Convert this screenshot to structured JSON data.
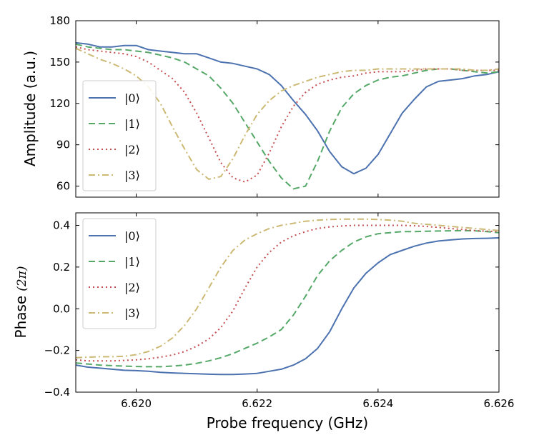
{
  "chart_data": [
    {
      "type": "line",
      "panel": "top",
      "ylabel": "Amplitude (a.u.)",
      "xlim": [
        6.619,
        6.626
      ],
      "ylim": [
        52,
        180
      ],
      "yticks": [
        60,
        90,
        120,
        150,
        180
      ],
      "ytick_labels": [
        "60",
        "90",
        "120",
        "150",
        "180"
      ],
      "xticks": [
        6.62,
        6.622,
        6.624,
        6.626
      ],
      "legend_position": "center-left",
      "series": [
        {
          "name": "|0⟩",
          "x": [
            6.619,
            6.6192,
            6.6194,
            6.6196,
            6.6198,
            6.62,
            6.6202,
            6.6204,
            6.6206,
            6.6208,
            6.621,
            6.6212,
            6.6214,
            6.6216,
            6.6218,
            6.622,
            6.6222,
            6.6224,
            6.6226,
            6.6228,
            6.623,
            6.6232,
            6.6234,
            6.6236,
            6.6238,
            6.624,
            6.6242,
            6.6244,
            6.6246,
            6.6248,
            6.625,
            6.6252,
            6.6254,
            6.6256,
            6.6258,
            6.626
          ],
          "values": [
            164,
            163,
            161,
            161,
            162,
            162,
            159,
            158,
            157,
            156,
            156,
            153,
            150,
            149,
            147,
            145,
            141,
            133,
            122,
            112,
            100,
            85,
            74,
            69,
            73,
            83,
            98,
            113,
            123,
            132,
            136,
            137,
            138,
            140,
            141,
            143
          ]
        },
        {
          "name": "|1⟩",
          "x": [
            6.619,
            6.6192,
            6.6194,
            6.6196,
            6.6198,
            6.62,
            6.6202,
            6.6204,
            6.6206,
            6.6208,
            6.621,
            6.6212,
            6.6214,
            6.6216,
            6.6218,
            6.622,
            6.6222,
            6.6224,
            6.6226,
            6.6228,
            6.623,
            6.6232,
            6.6234,
            6.6236,
            6.6238,
            6.624,
            6.6242,
            6.6244,
            6.6246,
            6.6248,
            6.625,
            6.6252,
            6.6254,
            6.6256,
            6.6258,
            6.626
          ],
          "values": [
            163,
            161,
            160,
            159,
            159,
            158,
            157,
            155,
            153,
            150,
            145,
            140,
            131,
            120,
            106,
            92,
            78,
            66,
            58,
            60,
            78,
            100,
            117,
            127,
            133,
            137,
            139,
            140,
            142,
            144,
            145,
            145,
            144,
            143,
            142,
            143
          ]
        },
        {
          "name": "|2⟩",
          "x": [
            6.619,
            6.6192,
            6.6194,
            6.6196,
            6.6198,
            6.62,
            6.6202,
            6.6204,
            6.6206,
            6.6208,
            6.621,
            6.6212,
            6.6214,
            6.6216,
            6.6218,
            6.622,
            6.6222,
            6.6224,
            6.6226,
            6.6228,
            6.623,
            6.6232,
            6.6234,
            6.6236,
            6.6238,
            6.624,
            6.6242,
            6.6244,
            6.6246,
            6.6248,
            6.625,
            6.6252,
            6.6254,
            6.6256,
            6.6258,
            6.626
          ],
          "values": [
            161,
            159,
            158,
            157,
            156,
            154,
            150,
            144,
            138,
            128,
            113,
            95,
            77,
            66,
            63,
            68,
            84,
            103,
            118,
            128,
            134,
            137,
            139,
            140,
            142,
            143,
            143,
            143,
            144,
            145,
            145,
            145,
            144,
            144,
            144,
            144
          ]
        },
        {
          "name": "|3⟩",
          "x": [
            6.619,
            6.6192,
            6.6194,
            6.6196,
            6.6198,
            6.62,
            6.6202,
            6.6204,
            6.6206,
            6.6208,
            6.621,
            6.6212,
            6.6214,
            6.6216,
            6.6218,
            6.622,
            6.6222,
            6.6224,
            6.6226,
            6.6228,
            6.623,
            6.6232,
            6.6234,
            6.6236,
            6.6238,
            6.624,
            6.6242,
            6.6244,
            6.6246,
            6.6248,
            6.625,
            6.6252,
            6.6254,
            6.6256,
            6.6258,
            6.626
          ],
          "values": [
            160,
            156,
            152,
            149,
            145,
            140,
            132,
            120,
            103,
            87,
            72,
            65,
            67,
            80,
            97,
            112,
            122,
            129,
            133,
            136,
            139,
            141,
            143,
            144,
            144,
            145,
            145,
            145,
            145,
            145,
            145,
            145,
            145,
            144,
            144,
            145
          ]
        }
      ]
    },
    {
      "type": "line",
      "panel": "bottom",
      "xlabel": "Probe frequency (GHz)",
      "ylabel": "Phase (2π)",
      "ylabel_text": "Phase",
      "ylabel_math": "(2π)",
      "xlim": [
        6.619,
        6.626
      ],
      "ylim": [
        -0.4,
        0.46
      ],
      "yticks": [
        -0.4,
        -0.2,
        0.0,
        0.2,
        0.4
      ],
      "ytick_labels": [
        "−0.4",
        "−0.2",
        "0.0",
        "0.2",
        "0.4"
      ],
      "xticks": [
        6.62,
        6.622,
        6.624,
        6.626
      ],
      "xtick_labels": [
        "6.620",
        "6.622",
        "6.624",
        "6.626"
      ],
      "legend_position": "top-left",
      "series": [
        {
          "name": "|0⟩",
          "x": [
            6.619,
            6.6192,
            6.6194,
            6.6196,
            6.6198,
            6.62,
            6.6202,
            6.6204,
            6.6206,
            6.6208,
            6.621,
            6.6212,
            6.6214,
            6.6216,
            6.6218,
            6.622,
            6.6222,
            6.6224,
            6.6226,
            6.6228,
            6.623,
            6.6232,
            6.6234,
            6.6236,
            6.6238,
            6.624,
            6.6242,
            6.6244,
            6.6246,
            6.6248,
            6.625,
            6.6252,
            6.6254,
            6.6256,
            6.6258,
            6.626
          ],
          "values": [
            -0.27,
            -0.28,
            -0.285,
            -0.29,
            -0.295,
            -0.297,
            -0.3,
            -0.305,
            -0.308,
            -0.31,
            -0.312,
            -0.314,
            -0.315,
            -0.315,
            -0.313,
            -0.31,
            -0.3,
            -0.29,
            -0.27,
            -0.24,
            -0.19,
            -0.11,
            0.0,
            0.1,
            0.17,
            0.22,
            0.26,
            0.28,
            0.3,
            0.315,
            0.325,
            0.33,
            0.335,
            0.337,
            0.338,
            0.34
          ]
        },
        {
          "name": "|1⟩",
          "x": [
            6.619,
            6.6192,
            6.6194,
            6.6196,
            6.6198,
            6.62,
            6.6202,
            6.6204,
            6.6206,
            6.6208,
            6.621,
            6.6212,
            6.6214,
            6.6216,
            6.6218,
            6.622,
            6.6222,
            6.6224,
            6.6226,
            6.6228,
            6.623,
            6.6232,
            6.6234,
            6.6236,
            6.6238,
            6.624,
            6.6242,
            6.6244,
            6.6246,
            6.6248,
            6.625,
            6.6252,
            6.6254,
            6.6256,
            6.6258,
            6.626
          ],
          "values": [
            -0.26,
            -0.265,
            -0.27,
            -0.273,
            -0.275,
            -0.277,
            -0.278,
            -0.278,
            -0.275,
            -0.27,
            -0.262,
            -0.25,
            -0.235,
            -0.215,
            -0.19,
            -0.165,
            -0.135,
            -0.1,
            -0.03,
            0.06,
            0.16,
            0.23,
            0.28,
            0.32,
            0.345,
            0.36,
            0.365,
            0.37,
            0.37,
            0.372,
            0.373,
            0.374,
            0.375,
            0.374,
            0.37,
            0.365
          ]
        },
        {
          "name": "|2⟩",
          "x": [
            6.619,
            6.6192,
            6.6194,
            6.6196,
            6.6198,
            6.62,
            6.6202,
            6.6204,
            6.6206,
            6.6208,
            6.621,
            6.6212,
            6.6214,
            6.6216,
            6.6218,
            6.622,
            6.6222,
            6.6224,
            6.6226,
            6.6228,
            6.623,
            6.6232,
            6.6234,
            6.6236,
            6.6238,
            6.624,
            6.6242,
            6.6244,
            6.6246,
            6.6248,
            6.625,
            6.6252,
            6.6254,
            6.6256,
            6.6258,
            6.626
          ],
          "values": [
            -0.245,
            -0.25,
            -0.25,
            -0.25,
            -0.248,
            -0.245,
            -0.24,
            -0.232,
            -0.222,
            -0.205,
            -0.18,
            -0.145,
            -0.09,
            -0.01,
            0.1,
            0.2,
            0.27,
            0.32,
            0.35,
            0.37,
            0.385,
            0.393,
            0.397,
            0.4,
            0.4,
            0.4,
            0.4,
            0.4,
            0.398,
            0.395,
            0.39,
            0.385,
            0.38,
            0.375,
            0.372,
            0.37
          ]
        },
        {
          "name": "|3⟩",
          "x": [
            6.619,
            6.6192,
            6.6194,
            6.6196,
            6.6198,
            6.62,
            6.6202,
            6.6204,
            6.6206,
            6.6208,
            6.621,
            6.6212,
            6.6214,
            6.6216,
            6.6218,
            6.622,
            6.6222,
            6.6224,
            6.6226,
            6.6228,
            6.623,
            6.6232,
            6.6234,
            6.6236,
            6.6238,
            6.624,
            6.6242,
            6.6244,
            6.6246,
            6.6248,
            6.625,
            6.6252,
            6.6254,
            6.6256,
            6.6258,
            6.626
          ],
          "values": [
            -0.235,
            -0.232,
            -0.23,
            -0.23,
            -0.228,
            -0.22,
            -0.205,
            -0.18,
            -0.14,
            -0.08,
            0.0,
            0.1,
            0.2,
            0.28,
            0.33,
            0.36,
            0.385,
            0.4,
            0.41,
            0.42,
            0.425,
            0.428,
            0.43,
            0.43,
            0.43,
            0.428,
            0.425,
            0.42,
            0.41,
            0.405,
            0.4,
            0.395,
            0.39,
            0.385,
            0.38,
            0.375
          ]
        }
      ]
    }
  ],
  "style": {
    "colors": [
      "#4c72b0",
      "#55a868",
      "#c44e52",
      "#ccb974"
    ],
    "dashes": [
      "",
      "9,5",
      "2,4",
      "9,4,2,4"
    ]
  }
}
